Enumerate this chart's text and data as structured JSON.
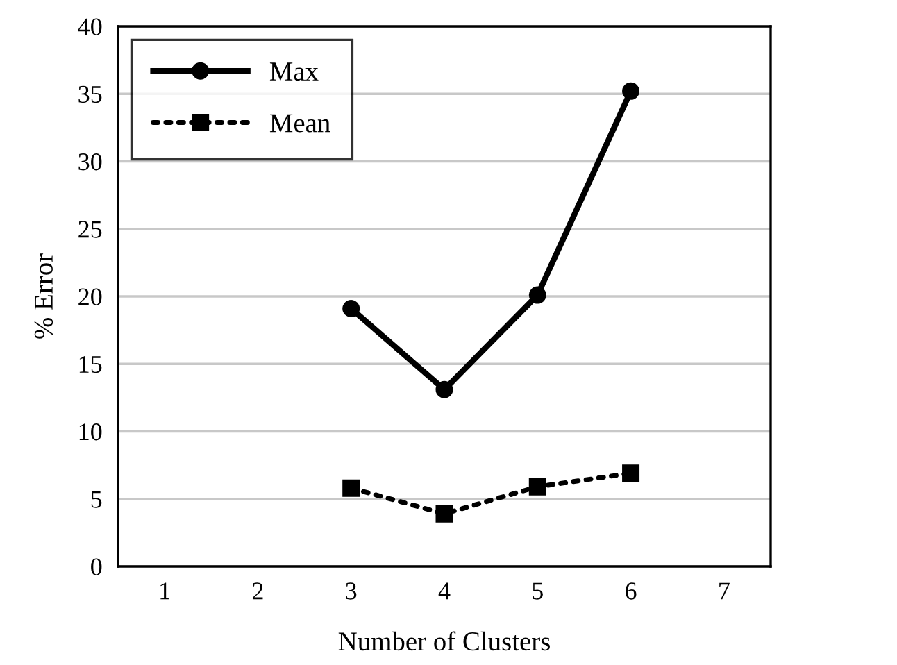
{
  "chart_data": {
    "type": "line",
    "xlabel": "Number of Clusters",
    "ylabel": "% Error",
    "x": [
      3,
      4,
      5,
      6
    ],
    "series": [
      {
        "name": "Max",
        "color": "#000000",
        "values": [
          19.1,
          13.1,
          20.1,
          35.2
        ],
        "marker": "circle",
        "line_style": "solid"
      },
      {
        "name": "Mean",
        "color": "#000000",
        "values": [
          5.8,
          3.9,
          5.9,
          6.9
        ],
        "marker": "square",
        "line_style": "dotted"
      }
    ],
    "xlim": [
      0.5,
      7.5
    ],
    "xticks": [
      1,
      2,
      3,
      4,
      5,
      6,
      7
    ],
    "ylim": [
      0,
      40
    ],
    "yticks": [
      0,
      5,
      10,
      15,
      20,
      25,
      30,
      35,
      40
    ],
    "grid": "y",
    "legend": "top left"
  }
}
